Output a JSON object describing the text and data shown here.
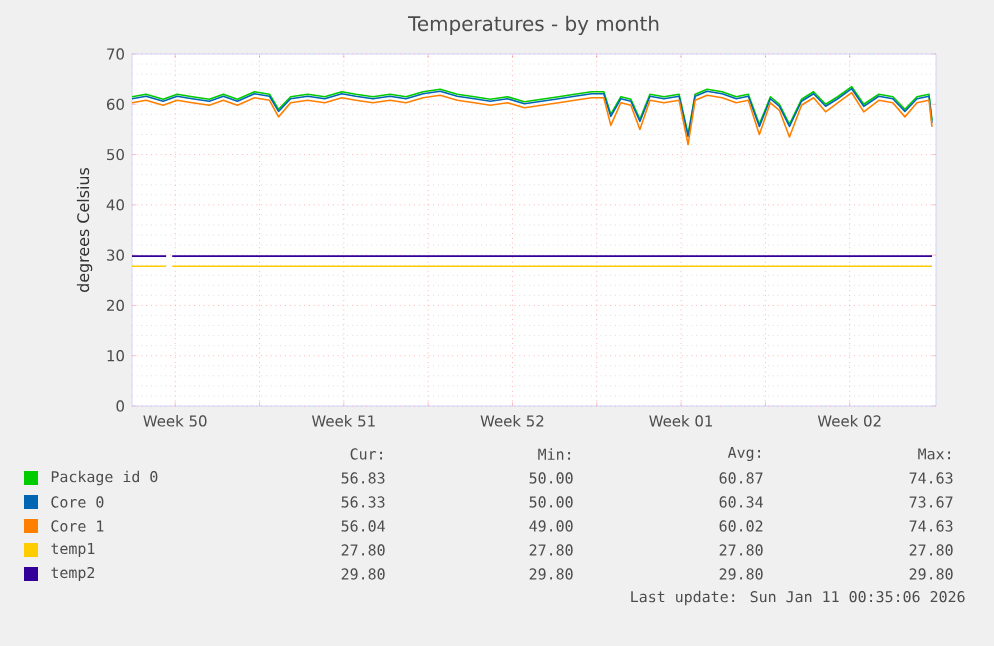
{
  "chart_data": {
    "type": "line",
    "title": "Temperatures - by month",
    "ylabel": "degrees Celsius",
    "x": [
      "2025-12-08T17:00",
      "2025-12-09T07:00",
      "2025-12-10T00:00",
      "2025-12-10T14:00",
      "2025-12-11T05:00",
      "2025-12-11T22:00",
      "2025-12-12T12:00",
      "2025-12-13T02:00",
      "2025-12-13T19:00",
      "2025-12-14T10:00",
      "2025-12-14T19:00",
      "2025-12-15T07:00",
      "2025-12-16T00:00",
      "2025-12-16T17:00",
      "2025-12-17T10:00",
      "2025-12-18T00:00",
      "2025-12-18T17:00",
      "2025-12-19T10:00",
      "2025-12-20T02:00",
      "2025-12-20T19:00",
      "2025-12-21T12:00",
      "2025-12-22T05:00",
      "2025-12-22T22:00",
      "2025-12-23T14:00",
      "2025-12-24T07:00",
      "2025-12-25T00:00",
      "2025-12-25T17:00",
      "2025-12-26T10:00",
      "2025-12-27T02:00",
      "2025-12-27T19:00",
      "2025-12-28T07:00",
      "2025-12-28T14:00",
      "2025-12-29T00:00",
      "2025-12-29T10:00",
      "2025-12-29T19:00",
      "2025-12-30T05:00",
      "2025-12-30T19:00",
      "2025-12-31T10:00",
      "2025-12-31T19:00",
      "2026-01-01T02:00",
      "2026-01-01T14:00",
      "2026-01-02T05:00",
      "2026-01-02T19:00",
      "2026-01-03T07:00",
      "2026-01-03T18:00",
      "2026-01-04T05:00",
      "2026-01-04T14:00",
      "2026-01-05T00:00",
      "2026-01-05T12:00",
      "2026-01-06T00:00",
      "2026-01-06T12:00",
      "2026-01-07T00:00",
      "2026-01-07T14:00",
      "2026-01-08T02:00",
      "2026-01-08T17:00",
      "2026-01-09T07:00",
      "2026-01-09T19:00",
      "2026-01-10T07:00",
      "2026-01-10T19:00",
      "2026-01-10T22:00"
    ],
    "series": [
      {
        "name": "Package id 0",
        "color": "#00cc00",
        "values": [
          61.5,
          62,
          61,
          62,
          61.5,
          61,
          62,
          61,
          62.5,
          62,
          59,
          61.5,
          62,
          61.5,
          62.5,
          62,
          61.5,
          62,
          61.5,
          62.5,
          63,
          62,
          61.5,
          61,
          61.5,
          60.5,
          61,
          61.5,
          62,
          62.5,
          62.5,
          58,
          61.5,
          61,
          57,
          62,
          61.5,
          62,
          54,
          62,
          63,
          62.5,
          61.5,
          62,
          56,
          61.5,
          60,
          56,
          61,
          62.5,
          60,
          61.5,
          63.5,
          60,
          62,
          61.5,
          59,
          61.5,
          62,
          56.8
        ]
      },
      {
        "name": "Core 0",
        "color": "#0066b3",
        "values": [
          61.1,
          61.6,
          60.6,
          61.6,
          61.1,
          60.6,
          61.6,
          60.6,
          62.1,
          61.6,
          58.6,
          61.1,
          61.6,
          61.1,
          62.1,
          61.6,
          61.1,
          61.6,
          61.1,
          62.1,
          62.6,
          61.6,
          61.1,
          60.6,
          61.1,
          60.1,
          60.6,
          61.1,
          61.6,
          62.1,
          62.1,
          57.6,
          61.1,
          60.6,
          56.6,
          61.6,
          61.1,
          61.6,
          53.6,
          61.6,
          62.6,
          62.1,
          61.1,
          61.6,
          55.6,
          61.1,
          59.6,
          55.6,
          60.6,
          62.1,
          59.6,
          61.1,
          63.1,
          59.6,
          61.6,
          61.1,
          58.6,
          61.1,
          61.6,
          56.3
        ]
      },
      {
        "name": "Core 1",
        "color": "#ff8000",
        "values": [
          60.3,
          60.8,
          59.8,
          60.8,
          60.3,
          59.8,
          60.8,
          59.8,
          61.3,
          60.8,
          57.5,
          60.3,
          60.8,
          60.3,
          61.3,
          60.8,
          60.3,
          60.8,
          60.3,
          61.3,
          61.8,
          60.8,
          60.3,
          59.8,
          60.3,
          59.3,
          59.8,
          60.3,
          60.8,
          61.3,
          61.3,
          55.8,
          60.3,
          59.8,
          55,
          60.8,
          60.3,
          60.8,
          52,
          60.8,
          61.8,
          61.3,
          60.3,
          60.8,
          54,
          60.3,
          58.8,
          53.5,
          59.8,
          61.3,
          58.5,
          60.3,
          62.3,
          58.5,
          60.8,
          60.3,
          57.5,
          60.3,
          60.8,
          55.5
        ]
      },
      {
        "name": "temp1",
        "color": "#ffcc00",
        "x": [
          "2025-12-08T17:00",
          "2025-12-10T03:00",
          "2025-12-10T06:00",
          "2025-12-10T09:00",
          "2026-01-10T22:00"
        ],
        "values": [
          27.8,
          27.8,
          null,
          27.8,
          27.8
        ]
      },
      {
        "name": "temp2",
        "color": "#330099",
        "x": [
          "2025-12-08T17:00",
          "2025-12-10T03:00",
          "2025-12-10T06:00",
          "2025-12-10T09:00",
          "2026-01-10T22:00"
        ],
        "values": [
          29.8,
          29.8,
          null,
          29.8,
          29.8
        ]
      }
    ],
    "xlim": [
      "2025-12-08T17:00",
      "2026-01-11T02:00"
    ],
    "xticks": [
      {
        "value": "2025-12-10T12:00",
        "label": "Week 50"
      },
      {
        "value": "2025-12-14T00:00",
        "label": null
      },
      {
        "value": "2025-12-17T12:00",
        "label": "Week 51"
      },
      {
        "value": "2025-12-21T00:00",
        "label": null
      },
      {
        "value": "2025-12-24T12:00",
        "label": "Week 52"
      },
      {
        "value": "2025-12-28T00:00",
        "label": null
      },
      {
        "value": "2025-12-31T12:00",
        "label": "Week 01"
      },
      {
        "value": "2026-01-04T00:00",
        "label": null
      },
      {
        "value": "2026-01-07T12:00",
        "label": "Week 02"
      }
    ],
    "ylim": [
      0,
      70
    ],
    "yticks": [
      0,
      10,
      20,
      30,
      40,
      50,
      60,
      70
    ],
    "grid": true,
    "legend": "bottom",
    "marker": "none",
    "line_style": "solid",
    "annotations": [
      "Cur:",
      "Min:",
      "Avg:",
      "Max:",
      "56.83",
      "50.00",
      "60.87",
      "74.63",
      "56.33",
      "50.00",
      "60.34",
      "73.67",
      "56.04",
      "49.00",
      "60.02",
      "74.63",
      "27.80",
      "27.80",
      "27.80",
      "27.80",
      "29.80",
      "29.80",
      "29.80",
      "29.80",
      "Last update: Sun Jan 11 00:35:06 2026"
    ]
  }
}
